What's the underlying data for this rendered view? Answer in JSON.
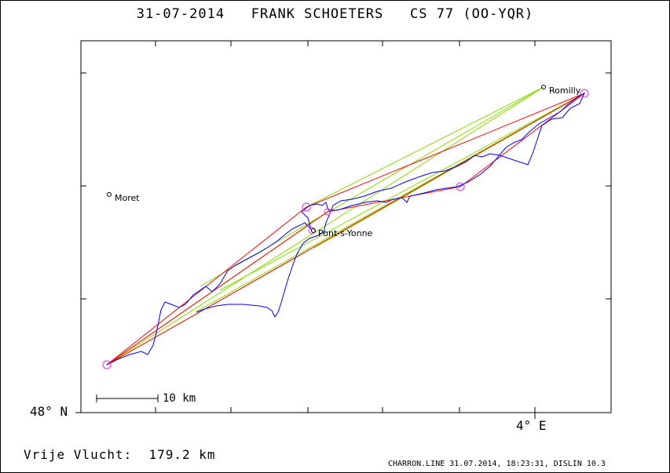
{
  "title": "31-07-2014   FRANK SCHOETERS   CS 77 (OO-YQR)",
  "axes": {
    "lat_label": "48° N",
    "lon_label": "4° E"
  },
  "scale_bar": {
    "label": "10 km"
  },
  "towns": [
    {
      "name": "Romilly"
    },
    {
      "name": "Moret"
    },
    {
      "name": "Pont-s-Yonne"
    }
  ],
  "distance_text": "Vrije Vlucht:  179.2 km",
  "footer": "CHARRON.LINE 31.07.2014, 18:23:31, DISLIN 10.3",
  "colors": {
    "track": "#0000ff",
    "route": "#ff0000",
    "leg": "#88dd00",
    "turnpoint": "#dd33dd",
    "frame": "#000000"
  }
}
